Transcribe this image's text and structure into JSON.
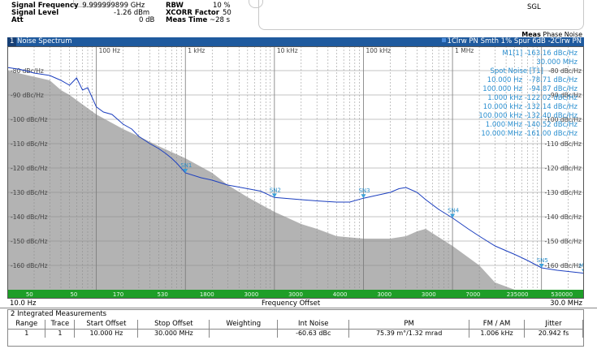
{
  "header": {
    "rows": [
      {
        "label": "Signal Frequency",
        "value": "9.999999899 GHz",
        "label2": "RBW",
        "value2": "10 %"
      },
      {
        "label": "Signal Level",
        "value": "-1.26 dBm",
        "label2": "XCORR Factor",
        "value2": "50"
      },
      {
        "label": "Att",
        "value": "0 dB",
        "label2": "Meas Time",
        "value2": "~28 s"
      }
    ],
    "sgl": "SGL",
    "meas_prefix": "Meas",
    "meas_name": "Phase Noise"
  },
  "plot": {
    "window_number": "1",
    "window_name": "Noise Spectrum",
    "trace_info": "1Clrw PN Smth 1% Spur 6dB  -2Clrw PN",
    "marker_m1_label": "M1[1]",
    "marker_m1_value": "-163.16 dBc/Hz",
    "marker_m1_freq": "30.000 MHz",
    "spot_noise_title": "Spot Noise [T1]",
    "spot_noise": [
      {
        "offset": "10.000 Hz",
        "value": "-78.71 dBc/Hz"
      },
      {
        "offset": "100.000 Hz",
        "value": "-94.87 dBc/Hz"
      },
      {
        "offset": "1.000 kHz",
        "value": "-122.02 dBc/Hz"
      },
      {
        "offset": "10.000 kHz",
        "value": "-132.14 dBc/Hz"
      },
      {
        "offset": "100.000 kHz",
        "value": "-132.40 dBc/Hz"
      },
      {
        "offset": "1.000 MHz",
        "value": "-140.52 dBc/Hz"
      },
      {
        "offset": "10.000 MHz",
        "value": "-161.00 dBc/Hz"
      }
    ],
    "freq_start": "10.0 Hz",
    "freq_stop": "30.0 MHz",
    "freq_axis_label": "Frequency Offset"
  },
  "chart_data": {
    "type": "line",
    "xscale": "log",
    "xlim": [
      10,
      30000000
    ],
    "ylim": [
      -170,
      -70
    ],
    "x_tick_labels": [
      {
        "x": 100,
        "label": "100 Hz"
      },
      {
        "x": 1000,
        "label": "1 kHz"
      },
      {
        "x": 10000,
        "label": "10 kHz"
      },
      {
        "x": 100000,
        "label": "100 kHz"
      },
      {
        "x": 1000000,
        "label": "1 MHz"
      }
    ],
    "y_tick_labels": [
      {
        "y": -80,
        "label": "-80 dBc/Hz"
      },
      {
        "y": -90,
        "label": "-90 dBc/Hz"
      },
      {
        "y": -100,
        "label": "-100 dBc/Hz"
      },
      {
        "y": -110,
        "label": "-110 dBc/Hz"
      },
      {
        "y": -120,
        "label": "-120 dBc/Hz"
      },
      {
        "y": -130,
        "label": "-130 dBc/Hz"
      },
      {
        "y": -140,
        "label": "-140 dBc/Hz"
      },
      {
        "y": -150,
        "label": "-150 dBc/Hz"
      },
      {
        "y": -160,
        "label": "-160 dBc/Hz"
      }
    ],
    "grid": true,
    "series": [
      {
        "name": "",
        "color": "#1c3fbf",
        "x": [
          10,
          14,
          20,
          30,
          40,
          50,
          60,
          70,
          80,
          100,
          120,
          150,
          200,
          250,
          300,
          400,
          500,
          600,
          700,
          800,
          1000,
          1500,
          2000,
          3000,
          5000,
          7000,
          10000,
          20000,
          30000,
          40000,
          50000,
          70000,
          100000,
          150000,
          200000,
          250000,
          300000,
          400000,
          500000,
          700000,
          1000000,
          1500000,
          2000000,
          3000000,
          5000000,
          7000000,
          10000000,
          15000000,
          20000000,
          30000000
        ],
        "y": [
          -78.7,
          -79.5,
          -81,
          -82,
          -84,
          -86,
          -83,
          -88,
          -87,
          -94.9,
          -97,
          -98,
          -102,
          -104,
          -107,
          -110,
          -112,
          -114,
          -116,
          -118,
          -122,
          -124,
          -125,
          -127,
          -128.5,
          -129.5,
          -132.1,
          -133,
          -133.5,
          -133.8,
          -134,
          -134,
          -132.4,
          -131,
          -130,
          -128.5,
          -128,
          -130,
          -133,
          -137,
          -140.5,
          -145,
          -148,
          -152,
          -155.5,
          -158,
          -161,
          -162,
          -162.5,
          -163.2
        ]
      }
    ],
    "reference": {
      "name": "",
      "color": "#b3b3b3",
      "x": [
        10,
        30,
        40,
        50,
        100,
        200,
        300,
        500,
        1000,
        2000,
        3000,
        5000,
        10000,
        20000,
        30000,
        50000,
        100000,
        200000,
        300000,
        400000,
        500000,
        1000000,
        2000000,
        3000000,
        5000000
      ],
      "y": [
        -80,
        -84,
        -88,
        -90,
        -98,
        -104,
        -107,
        -111,
        -116,
        -122,
        -127,
        -132,
        -138,
        -143,
        -145,
        -148,
        -149,
        -149,
        -148,
        -146,
        -145,
        -152,
        -160,
        -167,
        -170
      ]
    },
    "spot_markers": [
      {
        "label": "SN1",
        "x": 1000,
        "y": -122.02
      },
      {
        "label": "SN2",
        "x": 10000,
        "y": -132.14
      },
      {
        "label": "SN3",
        "x": 100000,
        "y": -132.4
      },
      {
        "label": "SN4",
        "x": 1000000,
        "y": -140.52
      },
      {
        "label": "SN5",
        "x": 10000000,
        "y": -161.0
      },
      {
        "label": "M1",
        "x": 30000000,
        "y": -163.16
      }
    ],
    "bottom_bar_values": [
      "50",
      "50",
      "170",
      "530",
      "1800",
      "3000",
      "3000",
      "4000",
      "3000",
      "3000",
      "7000",
      "235000",
      "530000"
    ]
  },
  "table": {
    "title": "2 Integrated Measurements",
    "columns": [
      "Range",
      "Trace",
      "Start Offset",
      "Stop Offset",
      "Weighting",
      "Int Noise",
      "PM",
      "FM / AM",
      "Jitter"
    ],
    "rows": [
      [
        "1",
        "1",
        "10.000 Hz",
        "30.000 MHz",
        "",
        "-60.63 dBc",
        "75.39 m°/1.32 mrad",
        "1.006 kHz",
        "20.942 fs"
      ]
    ]
  }
}
